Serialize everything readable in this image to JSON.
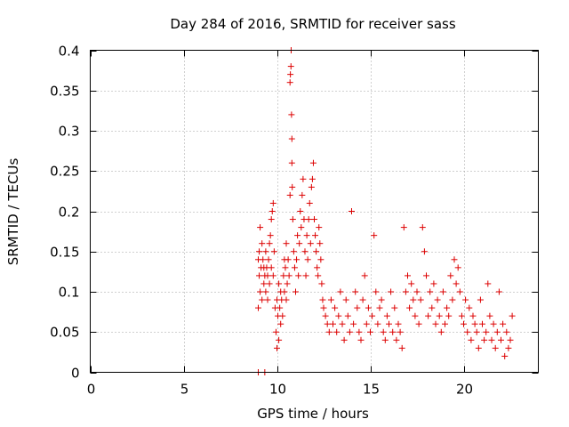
{
  "chart_data": {
    "type": "scatter",
    "title": "Day 284 of 2016, SRMTID for receiver sass",
    "xlabel": "GPS time / hours",
    "ylabel": "SRMTID / TECUs",
    "xlim": [
      0,
      24
    ],
    "ylim": [
      0,
      0.4
    ],
    "x_ticks": [
      0,
      5,
      10,
      15,
      20
    ],
    "x_tick_labels": [
      "0",
      "5",
      "10",
      "15",
      "20"
    ],
    "y_ticks": [
      0,
      0.05,
      0.1,
      0.15,
      0.2,
      0.25,
      0.3,
      0.35,
      0.4
    ],
    "y_tick_labels": [
      "0",
      "0.05",
      "0.1",
      "0.15",
      "0.2",
      "0.25",
      "0.3",
      "0.35",
      "0.4"
    ],
    "grid": true,
    "marker": "+",
    "color": "#dd0000",
    "series": [
      {
        "name": "SRMTID",
        "x": [
          9.0,
          9.0,
          9.05,
          9.05,
          9.1,
          9.1,
          9.15,
          9.2,
          9.2,
          9.25,
          9.3,
          9.3,
          9.35,
          9.4,
          9.4,
          9.45,
          9.5,
          9.5,
          9.55,
          9.6,
          9.6,
          9.65,
          9.7,
          9.7,
          9.75,
          9.8,
          9.8,
          9.85,
          9.9,
          9.95,
          10.0,
          10.0,
          10.05,
          10.1,
          10.1,
          10.15,
          10.2,
          10.2,
          10.25,
          10.3,
          10.35,
          10.4,
          10.4,
          10.45,
          10.5,
          10.5,
          10.55,
          10.6,
          10.65,
          10.7,
          10.7,
          10.72,
          10.75,
          10.76,
          10.78,
          10.8,
          10.8,
          10.82,
          10.85,
          10.9,
          10.95,
          11.0,
          11.05,
          11.1,
          11.15,
          11.2,
          11.25,
          11.3,
          11.35,
          11.4,
          11.45,
          11.5,
          11.55,
          11.6,
          11.65,
          11.7,
          11.75,
          11.8,
          11.85,
          11.9,
          11.95,
          12.0,
          12.05,
          12.1,
          12.15,
          12.2,
          12.25,
          12.3,
          12.35,
          12.4,
          12.45,
          12.5,
          12.6,
          12.7,
          12.8,
          12.9,
          13.0,
          13.1,
          13.2,
          13.3,
          13.4,
          13.5,
          13.6,
          13.7,
          13.8,
          13.9,
          14.0,
          14.1,
          14.2,
          14.3,
          14.4,
          14.5,
          14.6,
          14.7,
          14.8,
          14.9,
          15.0,
          15.1,
          15.2,
          15.3,
          15.4,
          15.5,
          15.6,
          15.7,
          15.8,
          15.9,
          16.0,
          16.1,
          16.2,
          16.3,
          16.4,
          16.5,
          16.6,
          16.7,
          16.8,
          16.9,
          17.0,
          17.1,
          17.2,
          17.3,
          17.4,
          17.5,
          17.6,
          17.7,
          17.8,
          17.9,
          18.0,
          18.1,
          18.2,
          18.3,
          18.4,
          18.5,
          18.6,
          18.7,
          18.8,
          18.9,
          19.0,
          19.1,
          19.2,
          19.3,
          19.4,
          19.5,
          19.6,
          19.7,
          19.8,
          19.9,
          20.0,
          20.1,
          20.2,
          20.3,
          20.4,
          20.5,
          20.6,
          20.7,
          20.8,
          20.9,
          21.0,
          21.1,
          21.2,
          21.3,
          21.4,
          21.5,
          21.6,
          21.7,
          21.8,
          21.9,
          22.0,
          22.1,
          22.2,
          22.3,
          22.4,
          22.5,
          22.6,
          9.0,
          9.35
        ],
        "y": [
          0.08,
          0.14,
          0.12,
          0.15,
          0.1,
          0.18,
          0.13,
          0.09,
          0.16,
          0.14,
          0.11,
          0.13,
          0.12,
          0.1,
          0.15,
          0.13,
          0.09,
          0.12,
          0.14,
          0.11,
          0.16,
          0.17,
          0.13,
          0.19,
          0.2,
          0.12,
          0.21,
          0.15,
          0.08,
          0.05,
          0.03,
          0.09,
          0.07,
          0.04,
          0.11,
          0.08,
          0.06,
          0.1,
          0.09,
          0.07,
          0.12,
          0.1,
          0.14,
          0.13,
          0.16,
          0.09,
          0.11,
          0.14,
          0.12,
          0.22,
          0.36,
          0.37,
          0.38,
          0.4,
          0.32,
          0.26,
          0.29,
          0.23,
          0.19,
          0.15,
          0.13,
          0.1,
          0.14,
          0.17,
          0.12,
          0.16,
          0.2,
          0.18,
          0.22,
          0.24,
          0.19,
          0.15,
          0.12,
          0.17,
          0.14,
          0.19,
          0.21,
          0.16,
          0.23,
          0.24,
          0.26,
          0.19,
          0.17,
          0.15,
          0.13,
          0.12,
          0.18,
          0.16,
          0.14,
          0.11,
          0.09,
          0.08,
          0.07,
          0.06,
          0.05,
          0.09,
          0.06,
          0.08,
          0.05,
          0.07,
          0.1,
          0.06,
          0.04,
          0.09,
          0.07,
          0.05,
          0.2,
          0.06,
          0.1,
          0.08,
          0.05,
          0.04,
          0.09,
          0.12,
          0.06,
          0.08,
          0.05,
          0.07,
          0.17,
          0.1,
          0.06,
          0.08,
          0.09,
          0.05,
          0.04,
          0.07,
          0.06,
          0.1,
          0.05,
          0.08,
          0.04,
          0.06,
          0.05,
          0.03,
          0.18,
          0.1,
          0.12,
          0.08,
          0.11,
          0.09,
          0.07,
          0.1,
          0.06,
          0.09,
          0.18,
          0.15,
          0.12,
          0.07,
          0.1,
          0.08,
          0.11,
          0.06,
          0.09,
          0.07,
          0.05,
          0.1,
          0.06,
          0.08,
          0.07,
          0.12,
          0.09,
          0.14,
          0.11,
          0.13,
          0.1,
          0.07,
          0.06,
          0.09,
          0.05,
          0.08,
          0.04,
          0.07,
          0.06,
          0.05,
          0.03,
          0.09,
          0.06,
          0.04,
          0.05,
          0.11,
          0.07,
          0.04,
          0.06,
          0.03,
          0.05,
          0.1,
          0.04,
          0.06,
          0.02,
          0.05,
          0.03,
          0.04,
          0.07,
          0.0,
          0.0
        ]
      }
    ]
  }
}
